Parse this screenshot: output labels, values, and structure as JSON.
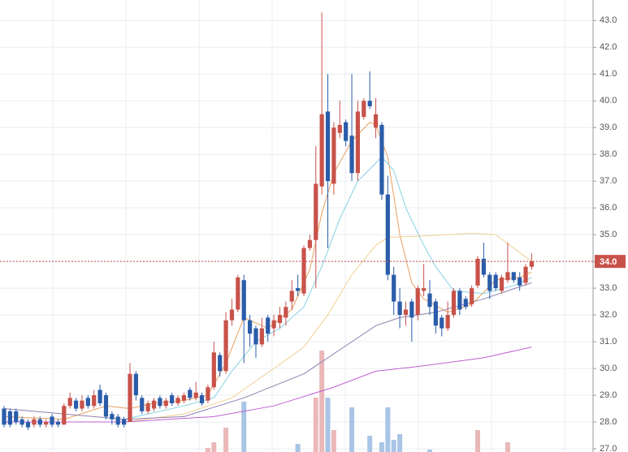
{
  "chart_data": {
    "type": "candlestick",
    "up_color": "#c8524a",
    "down_color": "#2a5caa",
    "volume_up_color": "#eab8b8",
    "volume_down_color": "#a9c5e6",
    "ylim": [
      27,
      43.1
    ],
    "yticks": [
      {
        "value": 27,
        "label": "27.0"
      },
      {
        "value": 28,
        "label": "28.0"
      },
      {
        "value": 29,
        "label": "29.0"
      },
      {
        "value": 30,
        "label": "30.0"
      },
      {
        "value": 31,
        "label": "31.0"
      },
      {
        "value": 32,
        "label": "32.0"
      },
      {
        "value": 33,
        "label": "33.0"
      },
      {
        "value": 34,
        "label": "34.0"
      },
      {
        "value": 35,
        "label": "35.0"
      },
      {
        "value": 36,
        "label": "36.0"
      },
      {
        "value": 37,
        "label": "37.0"
      },
      {
        "value": 38,
        "label": "38.0"
      },
      {
        "value": 39,
        "label": "39.0"
      },
      {
        "value": 40,
        "label": "40.0"
      },
      {
        "value": 41,
        "label": "41.0"
      },
      {
        "value": 42,
        "label": "42.0"
      },
      {
        "value": 43,
        "label": "43.0"
      }
    ],
    "grid": true,
    "last_price": {
      "value": 34,
      "label": "34.0",
      "color": "#c8524a"
    },
    "open": [
      28.5,
      28.4,
      28.4,
      28.1,
      28.0,
      27.9,
      28.1,
      27.9,
      28.2,
      28.0,
      27.9,
      28.6,
      28.8,
      28.5,
      28.9,
      28.6,
      29.2,
      29.0,
      28.3,
      28.2,
      28.1,
      28.0,
      29.8,
      28.9,
      28.4,
      28.5,
      28.9,
      28.6,
      29.0,
      28.7,
      28.8,
      29.2,
      28.9,
      29.0,
      28.8,
      29.3,
      30.5,
      29.9,
      31.8,
      32.2,
      33.3,
      31.8,
      31.5,
      30.9,
      31.9,
      31.5,
      31.7,
      31.9,
      32.5,
      33.0,
      32.8,
      34.5,
      34.8,
      36.8,
      39.6,
      36.9,
      38.8,
      39.2,
      38.7,
      37.3,
      39.4,
      40.0,
      39.0,
      39.1,
      36.5,
      33.5,
      32.5,
      32.0,
      32.5,
      32.0,
      32.9,
      32.8,
      32.5,
      31.9,
      31.5,
      32.0,
      32.9,
      32.6,
      32.4,
      33.1,
      34.1,
      33.5,
      33.5,
      32.9,
      33.3,
      33.6,
      33.4,
      33.2,
      33.8
    ],
    "high": [
      28.6,
      28.5,
      28.5,
      28.2,
      28.1,
      28.2,
      28.2,
      28.1,
      28.3,
      28.1,
      28.7,
      29.1,
      28.9,
      29.0,
      29.0,
      29.2,
      29.4,
      29.1,
      28.4,
      28.3,
      28.2,
      30.2,
      29.9,
      29.0,
      28.8,
      28.9,
      29.0,
      28.9,
      29.1,
      29.0,
      29.1,
      29.3,
      29.5,
      29.1,
      29.4,
      31.0,
      30.6,
      32.1,
      32.6,
      33.5,
      33.5,
      32.0,
      31.6,
      31.9,
      32.0,
      32.0,
      32.3,
      32.5,
      33.3,
      33.5,
      34.6,
      35.0,
      38.3,
      43.3,
      41.0,
      39.2,
      40.0,
      39.3,
      41.0,
      40.0,
      40.1,
      41.1,
      40.1,
      39.2,
      37.2,
      33.8,
      33.0,
      32.5,
      32.6,
      33.1,
      33.9,
      33.3,
      32.6,
      32.0,
      32.5,
      33.0,
      33.0,
      32.7,
      33.1,
      34.2,
      34.7,
      33.6,
      33.6,
      33.5,
      34.7,
      33.6,
      33.6,
      33.9,
      34.3
    ],
    "low": [
      27.8,
      27.8,
      27.9,
      27.8,
      27.7,
      27.8,
      27.8,
      27.8,
      27.8,
      27.8,
      27.9,
      28.5,
      28.4,
      28.4,
      28.5,
      28.5,
      28.6,
      28.1,
      27.9,
      27.8,
      27.8,
      28.0,
      28.8,
      28.3,
      28.3,
      28.4,
      28.5,
      28.5,
      28.6,
      28.6,
      28.7,
      28.8,
      28.8,
      28.6,
      28.7,
      29.2,
      29.7,
      29.8,
      31.6,
      32.1,
      30.2,
      30.8,
      30.4,
      30.8,
      31.0,
      31.2,
      31.5,
      31.6,
      32.2,
      32.7,
      32.7,
      34.4,
      33.0,
      36.5,
      34.5,
      36.5,
      38.6,
      38.3,
      37.0,
      37.0,
      39.3,
      39.7,
      38.6,
      36.3,
      33.3,
      32.0,
      31.5,
      31.6,
      31.0,
      31.8,
      32.7,
      32.0,
      31.3,
      31.2,
      31.4,
      31.9,
      32.0,
      32.2,
      32.3,
      33.0,
      33.4,
      32.6,
      32.9,
      32.8,
      33.2,
      33.2,
      32.9,
      33.1,
      33.7
    ],
    "close": [
      27.9,
      27.9,
      28.0,
      27.9,
      27.8,
      28.1,
      27.9,
      28.0,
      27.9,
      27.9,
      28.6,
      28.9,
      28.5,
      28.8,
      28.6,
      29.0,
      28.7,
      28.2,
      28.1,
      27.9,
      27.9,
      29.8,
      29.0,
      28.4,
      28.7,
      28.8,
      28.6,
      28.8,
      28.7,
      28.9,
      29.0,
      28.9,
      29.1,
      28.7,
      29.3,
      30.6,
      29.9,
      31.8,
      32.2,
      33.4,
      31.8,
      31.3,
      30.9,
      31.5,
      31.3,
      31.8,
      32.0,
      32.3,
      32.9,
      32.9,
      34.5,
      34.8,
      36.9,
      39.5,
      37.0,
      39.0,
      39.1,
      38.5,
      37.3,
      39.6,
      40.0,
      39.8,
      39.5,
      36.5,
      33.5,
      32.5,
      32.0,
      32.2,
      31.9,
      33.0,
      33.0,
      32.3,
      31.6,
      31.5,
      32.0,
      32.9,
      32.2,
      32.3,
      33.0,
      34.1,
      33.5,
      32.9,
      33.0,
      33.4,
      33.6,
      33.3,
      33.1,
      33.8,
      34.0
    ],
    "volume": [
      0,
      0,
      0,
      0,
      0,
      0,
      0,
      0,
      0,
      0,
      0,
      0,
      0,
      0,
      0,
      0,
      0,
      0,
      0,
      0,
      0,
      0,
      0,
      0,
      0,
      0,
      0,
      0,
      0,
      0,
      0,
      0,
      0,
      0,
      5,
      12,
      0,
      30,
      0,
      0,
      62,
      0,
      0,
      0,
      0,
      0,
      0,
      0,
      0,
      10,
      0,
      0,
      67,
      125,
      67,
      27,
      0,
      0,
      55,
      0,
      0,
      20,
      0,
      12,
      55,
      15,
      22,
      0,
      0,
      0,
      0,
      3,
      0,
      0,
      0,
      0,
      0,
      0,
      0,
      27,
      0,
      0,
      0,
      0,
      12,
      0,
      0,
      0,
      0
    ],
    "volume_lim": [
      0,
      130
    ],
    "series": [
      {
        "color": "#e8a060",
        "x": [
          0,
          10,
          17,
          21,
          25,
          30,
          34,
          37,
          40,
          44,
          48,
          51,
          53,
          55,
          58,
          61,
          62,
          64,
          66,
          68,
          70,
          74,
          78,
          82,
          86,
          88
        ],
        "values": [
          28.2,
          28.1,
          28.6,
          28.5,
          28.7,
          28.8,
          29.0,
          30.2,
          31.9,
          31.5,
          32.2,
          33.7,
          35.8,
          37.3,
          38.5,
          39.2,
          39.1,
          37.9,
          35.0,
          33.2,
          32.6,
          32.1,
          32.4,
          33.3,
          33.4,
          33.6
        ]
      },
      {
        "color": "#86d2e2",
        "x": [
          20,
          30,
          35,
          38,
          42,
          46,
          50,
          53,
          56,
          59,
          63,
          65,
          67,
          70,
          72,
          75,
          80,
          85,
          88
        ],
        "values": [
          28.1,
          28.6,
          28.9,
          29.9,
          31.0,
          31.5,
          32.3,
          33.8,
          35.6,
          37.0,
          37.9,
          37.4,
          36.0,
          34.6,
          33.8,
          32.9,
          32.8,
          33.1,
          33.4
        ]
      },
      {
        "color": "#f0d090",
        "x": [
          20,
          30,
          38,
          45,
          50,
          54,
          58,
          62,
          64,
          70,
          78,
          82,
          85,
          88
        ],
        "values": [
          28.0,
          28.3,
          28.9,
          30.0,
          30.8,
          32.0,
          33.5,
          34.6,
          34.9,
          34.95,
          35.05,
          35.0,
          34.5,
          34.0
        ]
      },
      {
        "color": "#9080b0",
        "x": [
          0,
          10,
          20,
          30,
          40,
          50,
          56,
          62,
          66,
          72,
          80,
          88
        ],
        "values": [
          28.5,
          28.3,
          28.1,
          28.2,
          28.9,
          29.8,
          30.7,
          31.6,
          31.9,
          32.1,
          32.6,
          33.2
        ]
      },
      {
        "color": "#c060d0",
        "x": [
          0,
          20,
          35,
          45,
          55,
          62,
          70,
          80,
          88
        ],
        "values": [
          28.0,
          28.0,
          28.2,
          28.6,
          29.3,
          29.9,
          30.1,
          30.4,
          30.8
        ]
      }
    ]
  }
}
